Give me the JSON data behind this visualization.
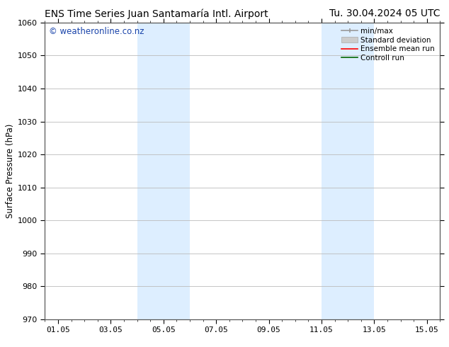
{
  "title_left": "ENS Time Series Juan Santamaría Intl. Airport",
  "title_right": "Tu. 30.04.2024 05 UTC",
  "ylabel": "Surface Pressure (hPa)",
  "ylim": [
    970,
    1060
  ],
  "yticks": [
    970,
    980,
    990,
    1000,
    1010,
    1020,
    1030,
    1040,
    1050,
    1060
  ],
  "xlim": [
    0,
    15
  ],
  "xtick_labels": [
    "01.05",
    "03.05",
    "05.05",
    "07.05",
    "09.05",
    "11.05",
    "13.05",
    "15.05"
  ],
  "xtick_positions": [
    0.5,
    2.5,
    4.5,
    6.5,
    8.5,
    10.5,
    12.5,
    14.5
  ],
  "shaded_regions": [
    {
      "start": 3.5,
      "end": 5.5,
      "color": "#ddeeff"
    },
    {
      "start": 10.5,
      "end": 12.5,
      "color": "#ddeeff"
    }
  ],
  "watermark_text": "© weatheronline.co.nz",
  "watermark_color": "#1a44aa",
  "watermark_fontsize": 8.5,
  "bg_color": "#ffffff",
  "plot_bg_color": "#ffffff",
  "grid_color": "#bbbbbb",
  "title_fontsize": 10,
  "axis_label_fontsize": 8.5,
  "tick_fontsize": 8,
  "legend_fontsize": 7.5,
  "spine_color": "#555555"
}
